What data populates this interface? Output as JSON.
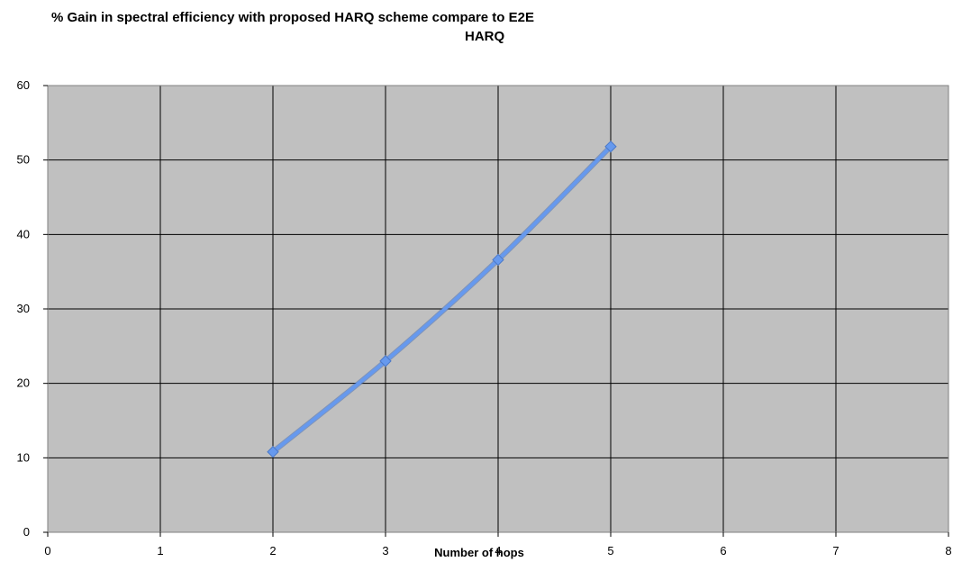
{
  "chart_data": {
    "type": "line",
    "title": "% Gain in spectral efficiency with proposed HARQ scheme compare to E2E HARQ",
    "title_lines": [
      "% Gain in spectral efficiency with proposed HARQ scheme compare to E2E",
      "HARQ"
    ],
    "xlabel": "Number of hops",
    "ylabel": "",
    "xlim": [
      0,
      8
    ],
    "ylim": [
      0,
      60
    ],
    "xticks": [
      0,
      1,
      2,
      3,
      4,
      5,
      6,
      7,
      8
    ],
    "yticks": [
      0,
      10,
      20,
      30,
      40,
      50,
      60
    ],
    "grid": true,
    "legend": "none",
    "plot_background": "#c0c0c0",
    "grid_color": "#000000",
    "series": [
      {
        "color": "#6699ee",
        "x": [
          2,
          3,
          4,
          5
        ],
        "y": [
          10.8,
          23,
          36.6,
          51.8
        ]
      }
    ]
  }
}
